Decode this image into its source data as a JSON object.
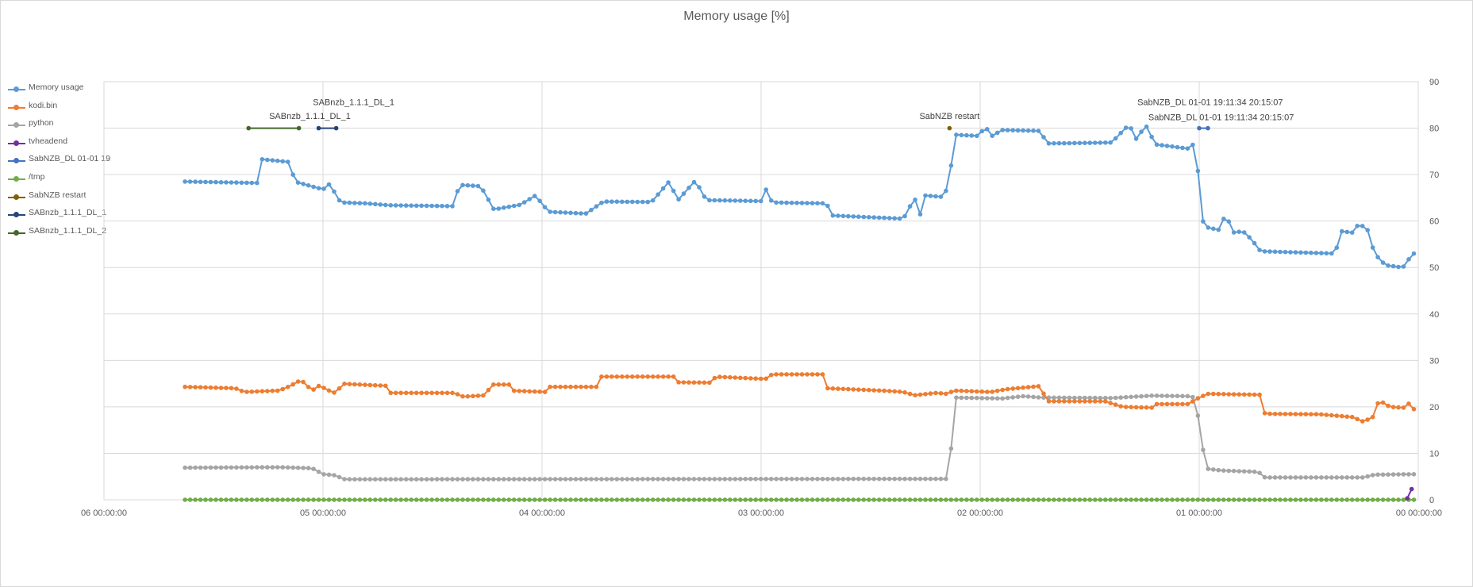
{
  "chart_data": {
    "type": "line",
    "title": "Memory usage [%]",
    "xlabel": "",
    "ylabel": "",
    "x_axis": {
      "reversed": true,
      "unit": "days",
      "range": [
        0,
        6
      ],
      "tick_values": [
        6,
        5,
        4,
        3,
        2,
        1,
        0
      ],
      "tick_labels": [
        "06 00:00:00",
        "05 00:00:00",
        "04 00:00:00",
        "03 00:00:00",
        "02 00:00:00",
        "01 00:00:00",
        "00 00:00:00"
      ]
    },
    "y_axis": {
      "position": "right",
      "range": [
        0,
        90
      ],
      "tick_values": [
        0,
        10,
        20,
        30,
        40,
        50,
        60,
        70,
        80,
        90
      ],
      "tick_labels": [
        "0",
        "10",
        "20",
        "30",
        "40",
        "50",
        "60",
        "70",
        "80",
        "90"
      ]
    },
    "grid": true,
    "legend_position": "left",
    "sampling": {
      "x_start": 5.63,
      "x_end": 0.02,
      "samples": 240
    },
    "series": [
      {
        "name": "Memory usage",
        "color": "#5b9bd5",
        "segments": [
          [
            5.63,
            68.5
          ],
          [
            5.3,
            68.2
          ],
          [
            5.28,
            73.3
          ],
          [
            5.15,
            72.7
          ],
          [
            5.13,
            68.5
          ],
          [
            5.0,
            66.8
          ],
          [
            4.97,
            68.0
          ],
          [
            4.92,
            64.0
          ],
          [
            4.8,
            63.8
          ],
          [
            4.7,
            63.4
          ],
          [
            4.4,
            63.2
          ],
          [
            4.38,
            67.8
          ],
          [
            4.28,
            67.5
          ],
          [
            4.22,
            62.5
          ],
          [
            4.1,
            63.5
          ],
          [
            4.03,
            65.5
          ],
          [
            3.97,
            62.0
          ],
          [
            3.8,
            61.6
          ],
          [
            3.72,
            64.2
          ],
          [
            3.5,
            64.1
          ],
          [
            3.42,
            68.5
          ],
          [
            3.38,
            64.5
          ],
          [
            3.3,
            68.7
          ],
          [
            3.25,
            64.5
          ],
          [
            3.0,
            64.3
          ],
          [
            2.98,
            67.0
          ],
          [
            2.95,
            64.0
          ],
          [
            2.7,
            63.8
          ],
          [
            2.68,
            61.2
          ],
          [
            2.35,
            60.5
          ],
          [
            2.3,
            65.0
          ],
          [
            2.27,
            61.0
          ],
          [
            2.25,
            65.5
          ],
          [
            2.17,
            65.2
          ],
          [
            2.14,
            68.0
          ],
          [
            2.12,
            78.6
          ],
          [
            2.0,
            78.3
          ],
          [
            1.98,
            80.8
          ],
          [
            1.95,
            78.2
          ],
          [
            1.9,
            79.6
          ],
          [
            1.72,
            79.4
          ],
          [
            1.7,
            76.7
          ],
          [
            1.4,
            76.9
          ],
          [
            1.32,
            80.8
          ],
          [
            1.28,
            77.0
          ],
          [
            1.25,
            81.2
          ],
          [
            1.2,
            76.5
          ],
          [
            1.05,
            75.6
          ],
          [
            1.02,
            76.8
          ],
          [
            1.0,
            68.3
          ],
          [
            0.98,
            58.8
          ],
          [
            0.9,
            58.0
          ],
          [
            0.88,
            62.3
          ],
          [
            0.85,
            57.5
          ],
          [
            0.8,
            57.8
          ],
          [
            0.76,
            56.0
          ],
          [
            0.72,
            53.5
          ],
          [
            0.38,
            53.0
          ],
          [
            0.35,
            57.8
          ],
          [
            0.3,
            57.5
          ],
          [
            0.27,
            59.5
          ],
          [
            0.23,
            58.0
          ],
          [
            0.2,
            53.0
          ],
          [
            0.15,
            50.5
          ],
          [
            0.07,
            50.0
          ],
          [
            0.04,
            52.0
          ],
          [
            0.02,
            53.0
          ]
        ]
      },
      {
        "name": "kodi.bin",
        "color": "#ed7d31",
        "segments": [
          [
            5.63,
            24.3
          ],
          [
            5.4,
            24.0
          ],
          [
            5.36,
            23.2
          ],
          [
            5.2,
            23.5
          ],
          [
            5.15,
            24.5
          ],
          [
            5.1,
            25.8
          ],
          [
            5.05,
            23.5
          ],
          [
            5.02,
            24.5
          ],
          [
            4.98,
            23.8
          ],
          [
            4.96,
            23.0
          ],
          [
            4.93,
            23.2
          ],
          [
            4.92,
            25.0
          ],
          [
            4.7,
            24.5
          ],
          [
            4.7,
            23.0
          ],
          [
            4.4,
            23.0
          ],
          [
            4.36,
            22.2
          ],
          [
            4.25,
            22.5
          ],
          [
            4.24,
            24.8
          ],
          [
            4.15,
            24.8
          ],
          [
            4.15,
            23.5
          ],
          [
            3.98,
            23.2
          ],
          [
            3.98,
            24.3
          ],
          [
            3.75,
            24.3
          ],
          [
            3.73,
            26.5
          ],
          [
            3.4,
            26.5
          ],
          [
            3.4,
            25.3
          ],
          [
            3.22,
            25.2
          ],
          [
            3.21,
            26.5
          ],
          [
            2.98,
            26.0
          ],
          [
            2.95,
            27.0
          ],
          [
            2.7,
            27.0
          ],
          [
            2.7,
            24.0
          ],
          [
            2.45,
            23.5
          ],
          [
            2.35,
            23.2
          ],
          [
            2.3,
            22.5
          ],
          [
            2.2,
            23.0
          ],
          [
            2.15,
            22.8
          ],
          [
            2.12,
            23.5
          ],
          [
            1.95,
            23.2
          ],
          [
            1.88,
            23.8
          ],
          [
            1.72,
            24.5
          ],
          [
            1.7,
            21.2
          ],
          [
            1.43,
            21.2
          ],
          [
            1.35,
            20.0
          ],
          [
            1.2,
            19.8
          ],
          [
            1.2,
            20.6
          ],
          [
            1.05,
            20.6
          ],
          [
            1.0,
            22.0
          ],
          [
            0.96,
            22.8
          ],
          [
            0.72,
            22.6
          ],
          [
            0.7,
            18.5
          ],
          [
            0.45,
            18.4
          ],
          [
            0.3,
            17.8
          ],
          [
            0.25,
            16.8
          ],
          [
            0.2,
            18.0
          ],
          [
            0.18,
            21.5
          ],
          [
            0.13,
            20.0
          ],
          [
            0.06,
            19.8
          ],
          [
            0.05,
            21.0
          ],
          [
            0.02,
            19.5
          ]
        ]
      },
      {
        "name": "python",
        "color": "#a5a5a5",
        "segments": [
          [
            5.63,
            6.9
          ],
          [
            5.2,
            7.0
          ],
          [
            5.05,
            6.8
          ],
          [
            5.0,
            5.5
          ],
          [
            4.95,
            5.3
          ],
          [
            4.9,
            4.4
          ],
          [
            2.14,
            4.5
          ],
          [
            2.12,
            22.0
          ],
          [
            1.9,
            21.8
          ],
          [
            1.8,
            22.3
          ],
          [
            1.72,
            22.0
          ],
          [
            1.4,
            21.9
          ],
          [
            1.22,
            22.4
          ],
          [
            1.05,
            22.3
          ],
          [
            1.02,
            22.0
          ],
          [
            1.0,
            16.5
          ],
          [
            0.97,
            6.7
          ],
          [
            0.9,
            6.3
          ],
          [
            0.73,
            6.0
          ],
          [
            0.7,
            4.8
          ],
          [
            0.25,
            4.8
          ],
          [
            0.2,
            5.4
          ],
          [
            0.02,
            5.5
          ]
        ]
      },
      {
        "name": "tvheadend",
        "color": "#7030a0",
        "segments": [
          [
            0.05,
            0.3
          ],
          [
            0.03,
            2.3
          ]
        ]
      },
      {
        "name": "SabNZB_DL 01-01 19:11:34 20:15:07",
        "color": "#4472c4",
        "segments": [
          [
            1.0,
            80.0
          ],
          [
            0.96,
            80.0
          ]
        ]
      },
      {
        "name": "/tmp",
        "color": "#70ad47",
        "segments": [
          [
            5.63,
            0.0
          ],
          [
            0.02,
            0.0
          ]
        ]
      },
      {
        "name": "SabNZB restart",
        "color": "#806000",
        "segments": [
          [
            2.14,
            80.0
          ]
        ]
      },
      {
        "name": "SABnzb_1.1.1_DL_1",
        "color": "#264478",
        "segments": [
          [
            5.02,
            80.0
          ],
          [
            4.94,
            80.0
          ]
        ]
      },
      {
        "name": "SABnzb_1.1.1_DL_2",
        "color": "#43682b",
        "segments": [
          [
            5.34,
            80.0
          ],
          [
            5.11,
            80.0
          ]
        ]
      }
    ],
    "annotations": [
      {
        "text": "SABnzb_1.1.1_DL_1",
        "x": 4.86,
        "y": 85.0
      },
      {
        "text": "SABnzb_1.1.1_DL_1",
        "x": 5.06,
        "y": 82.0
      },
      {
        "text": "SabNZB restart",
        "x": 2.14,
        "y": 82.0
      },
      {
        "text": "SabNZB_DL 01-01 19:11:34 20:15:07",
        "x": 0.95,
        "y": 85.0
      },
      {
        "text": "SabNZB_DL 01-01 19:11:34 20:15:07",
        "x": 0.9,
        "y": 81.7
      }
    ]
  }
}
